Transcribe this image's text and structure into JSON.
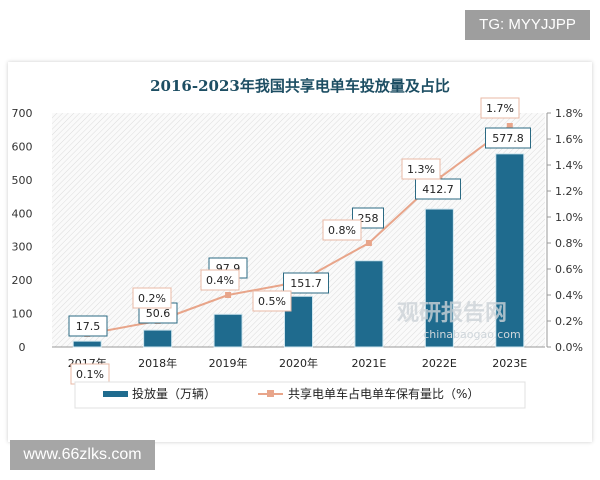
{
  "watermarks": {
    "top_right": "TG: MYYJJPP",
    "bottom_left": "www.66zlks.com",
    "logo": "观研报告网 chinabaogao.com"
  },
  "chart_data": {
    "type": "bar+line",
    "title": "2016-2023年我国共享电单车投放量及占比",
    "categories": [
      "2017年",
      "2018年",
      "2019年",
      "2020年",
      "2021E",
      "2022E",
      "2023E"
    ],
    "series": [
      {
        "name": "投放量（万辆）",
        "type": "bar",
        "axis": "left",
        "values": [
          17.5,
          50.6,
          97.9,
          151.7,
          258,
          412.7,
          577.8
        ],
        "labels": [
          "17.5",
          "50.6",
          "97.9",
          "151.7",
          "258",
          "412.7",
          "577.8"
        ],
        "color": "#1f6b8e"
      },
      {
        "name": "共享电单车占电单车保有量比（%）",
        "type": "line",
        "axis": "right",
        "values": [
          0.1,
          0.2,
          0.4,
          0.5,
          0.8,
          1.3,
          1.7
        ],
        "labels": [
          "0.1%",
          "0.2%",
          "0.4%",
          "0.5%",
          "0.8%",
          "1.3%",
          "1.7%"
        ],
        "color": "#e8a58a"
      }
    ],
    "left_axis": {
      "range": [
        0,
        700
      ],
      "ticks": [
        "0",
        "100",
        "200",
        "300",
        "400",
        "500",
        "600",
        "700"
      ]
    },
    "right_axis": {
      "range": [
        0,
        1.8
      ],
      "ticks": [
        "0.0%",
        "0.2%",
        "0.4%",
        "0.6%",
        "0.8%",
        "1.0%",
        "1.2%",
        "1.4%",
        "1.6%",
        "1.8%"
      ]
    },
    "legend": "bottom"
  }
}
